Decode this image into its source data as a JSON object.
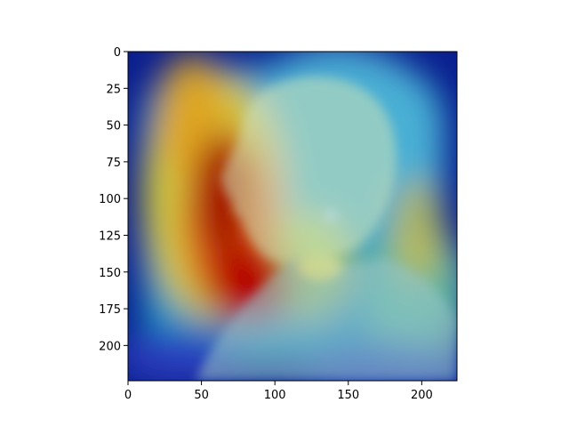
{
  "chart_data": {
    "type": "heatmap",
    "description_visible": "",
    "overlay": "attention heatmap over portrait photograph",
    "colormap": "jet",
    "x_ticks": [
      0,
      50,
      100,
      150,
      200
    ],
    "y_ticks": [
      0,
      25,
      50,
      75,
      100,
      125,
      150,
      175,
      200
    ],
    "xlim": [
      0,
      224
    ],
    "ylim": [
      224,
      0
    ],
    "grid": false,
    "colors": {
      "low": "#00008b",
      "mid_low": "#00bfff",
      "mid": "#7fff7f",
      "mid_high": "#ffd700",
      "high": "#b30000"
    }
  }
}
